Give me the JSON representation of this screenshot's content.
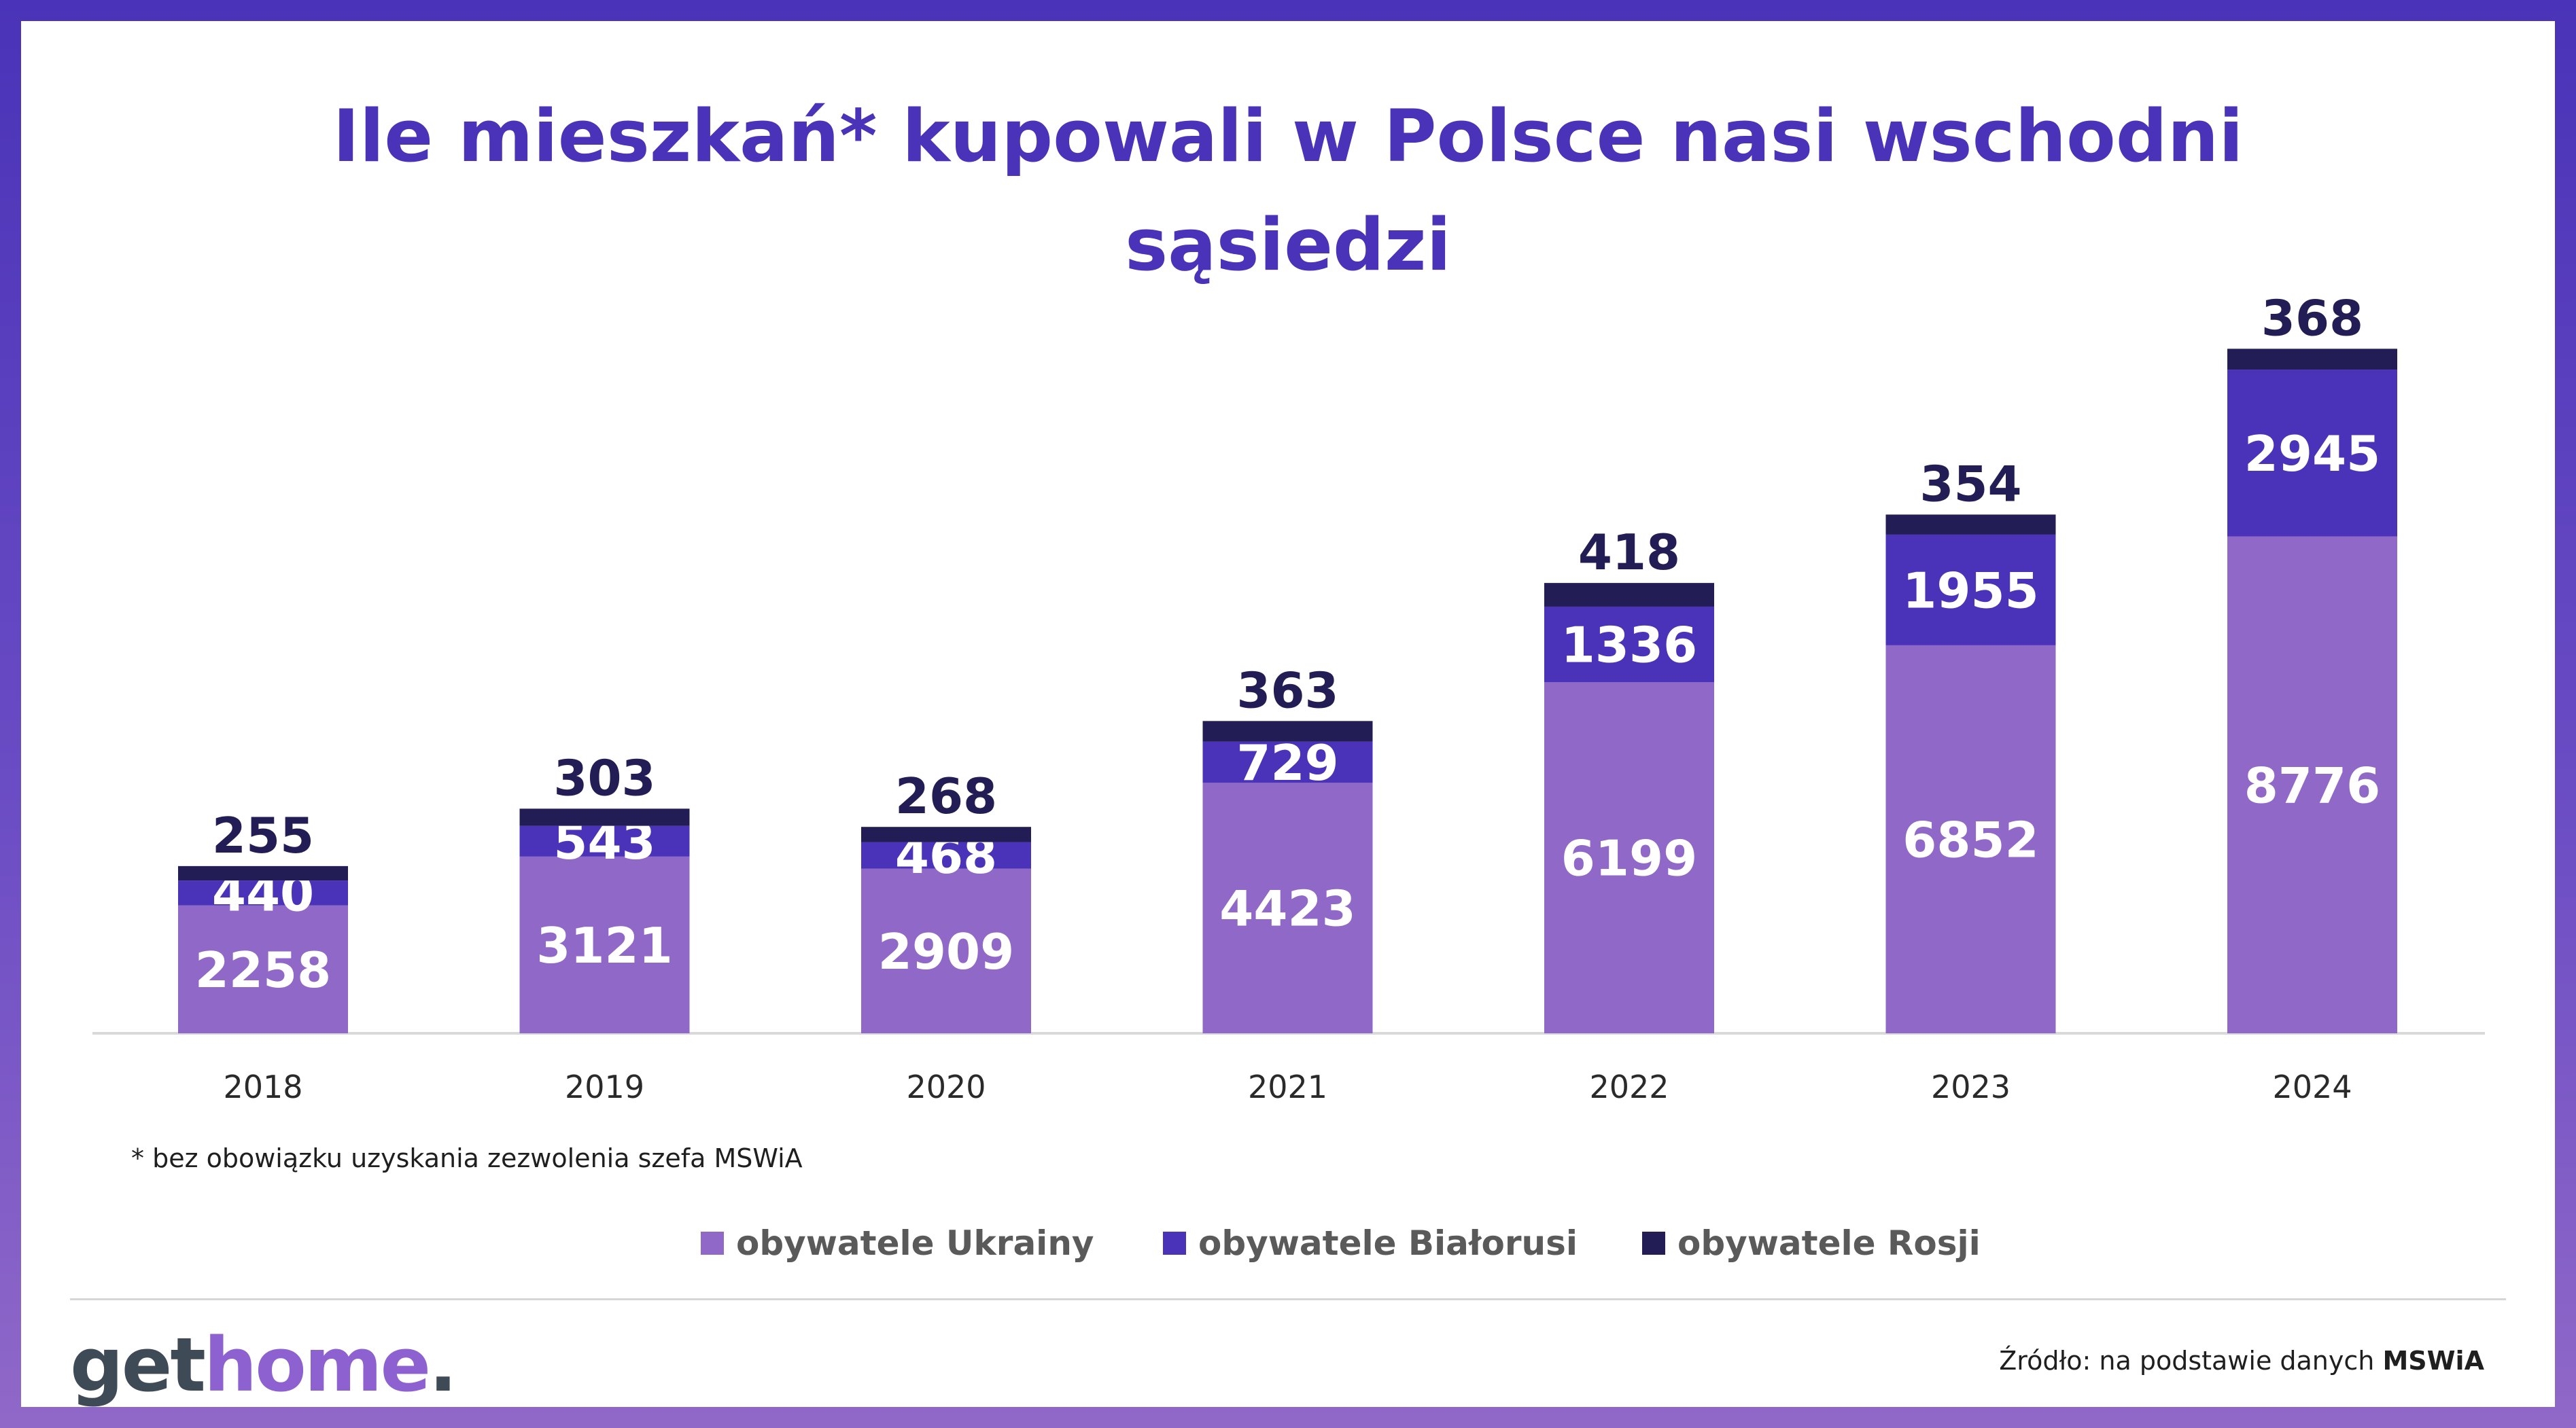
{
  "title": {
    "line1": "Ile mieszkań* kupowali w Polsce nasi wschodni",
    "line2": "sąsiedzi"
  },
  "footnote": "* bez obowiązku uzyskania zezwolenia szefa MSWiA",
  "legend": [
    {
      "label": "obywatele Ukrainy",
      "color": "#9068c8"
    },
    {
      "label": "obywatele Białorusi",
      "color": "#4a33b8"
    },
    {
      "label": "obywatele Rosji",
      "color": "#221d54"
    }
  ],
  "logo": {
    "part1": "get",
    "part2": "home",
    "part3": "."
  },
  "source": {
    "prefix": "Źródło: na podstawie danych ",
    "bold": "MSWiA"
  },
  "colors": {
    "ukraine": "#9068c8",
    "belarus": "#4a33b8",
    "russia": "#221d54",
    "title": "#4a33b8",
    "background": "#4a33b8"
  },
  "chart_data": {
    "type": "bar",
    "stacked": true,
    "categories": [
      "2018",
      "2019",
      "2020",
      "2021",
      "2022",
      "2023",
      "2024"
    ],
    "series": [
      {
        "name": "obywatele Ukrainy",
        "values": [
          2258,
          3121,
          2909,
          4423,
          6199,
          6852,
          8776
        ]
      },
      {
        "name": "obywatele Białorusi",
        "values": [
          440,
          543,
          468,
          729,
          1336,
          1955,
          2945
        ]
      },
      {
        "name": "obywatele Rosji",
        "values": [
          255,
          303,
          268,
          363,
          418,
          354,
          368
        ]
      }
    ],
    "title": "Ile mieszkań* kupowali w Polsce nasi wschodni sąsiedzi",
    "legend_position": "bottom",
    "grid": false
  }
}
